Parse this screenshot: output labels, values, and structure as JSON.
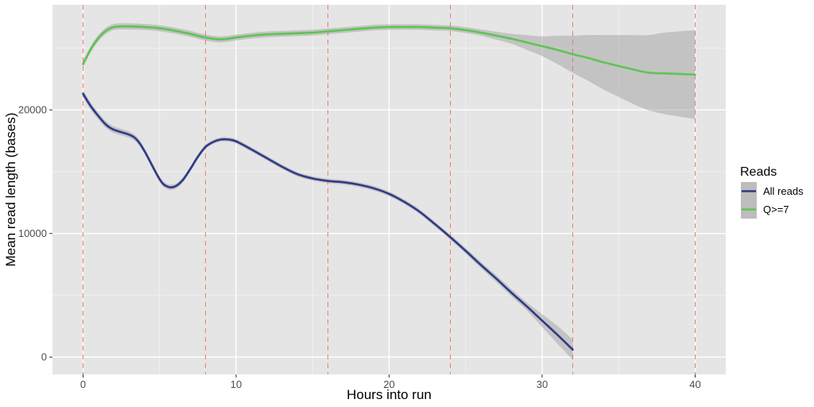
{
  "chart_data": {
    "type": "line",
    "title": "",
    "xlabel": "Hours into run",
    "ylabel": "Mean read length (bases)",
    "xlim": [
      -2,
      42
    ],
    "ylim": [
      -1400,
      28500
    ],
    "x_ticks": [
      0,
      10,
      20,
      30,
      40
    ],
    "x_tick_labels": [
      "0",
      "10",
      "20",
      "30",
      "40"
    ],
    "y_ticks": [
      0,
      10000,
      20000
    ],
    "y_tick_labels": [
      "0",
      "10000",
      "20000"
    ],
    "grid": true,
    "legend": {
      "title": "Reads",
      "position": "right"
    },
    "vlines": {
      "x": [
        0,
        8,
        16,
        24,
        32,
        40
      ],
      "color": "#f8766d",
      "style": "dashed"
    },
    "series": [
      {
        "name": "All reads",
        "color": "#2e3a87",
        "x": [
          0,
          0.5,
          1,
          1.5,
          2,
          3,
          3.5,
          4,
          5,
          5.5,
          6,
          6.5,
          7,
          7.5,
          8,
          8.5,
          9,
          9.5,
          10,
          11,
          12,
          13,
          14,
          15,
          16,
          17,
          18,
          19,
          20,
          21,
          22,
          23,
          24,
          25,
          26,
          27,
          28,
          29,
          30,
          31,
          32
        ],
        "y": [
          21300,
          20300,
          19500,
          18800,
          18400,
          18000,
          17600,
          16700,
          14400,
          13800,
          13800,
          14300,
          15200,
          16200,
          17000,
          17400,
          17600,
          17600,
          17450,
          16800,
          16100,
          15400,
          14800,
          14450,
          14250,
          14150,
          13950,
          13650,
          13200,
          12550,
          11750,
          10750,
          9700,
          8600,
          7450,
          6350,
          5200,
          4100,
          2950,
          1800,
          600
        ],
        "ci_x": [
          0,
          8,
          16,
          24,
          29,
          30,
          31.5
        ],
        "ci_width": [
          300,
          180,
          180,
          200,
          320,
          520,
          820
        ]
      },
      {
        "name": "Q>=7",
        "color": "#5ec454",
        "x": [
          0,
          0.5,
          1,
          1.5,
          2,
          2.5,
          3,
          4,
          5,
          6,
          7,
          8,
          9,
          10,
          11,
          12,
          13,
          14,
          15,
          16,
          17,
          18,
          19,
          20,
          21,
          22,
          23,
          24,
          25,
          26,
          27,
          28,
          29,
          30,
          31,
          32,
          33,
          34,
          35,
          36,
          37,
          38,
          39,
          40
        ],
        "y": [
          23700,
          24900,
          25800,
          26400,
          26700,
          26750,
          26750,
          26700,
          26600,
          26400,
          26150,
          25850,
          25700,
          25850,
          26000,
          26100,
          26150,
          26200,
          26250,
          26350,
          26450,
          26550,
          26650,
          26700,
          26700,
          26700,
          26650,
          26600,
          26450,
          26250,
          26000,
          25750,
          25450,
          25150,
          24850,
          24500,
          24200,
          23850,
          23550,
          23250,
          23000,
          22950,
          22900,
          22850
        ],
        "ci_x": [
          0,
          24,
          26,
          28,
          30,
          32,
          34,
          36,
          38,
          40
        ],
        "ci_width": [
          250,
          220,
          250,
          400,
          800,
          1500,
          2200,
          2800,
          3300,
          3600
        ]
      }
    ]
  }
}
